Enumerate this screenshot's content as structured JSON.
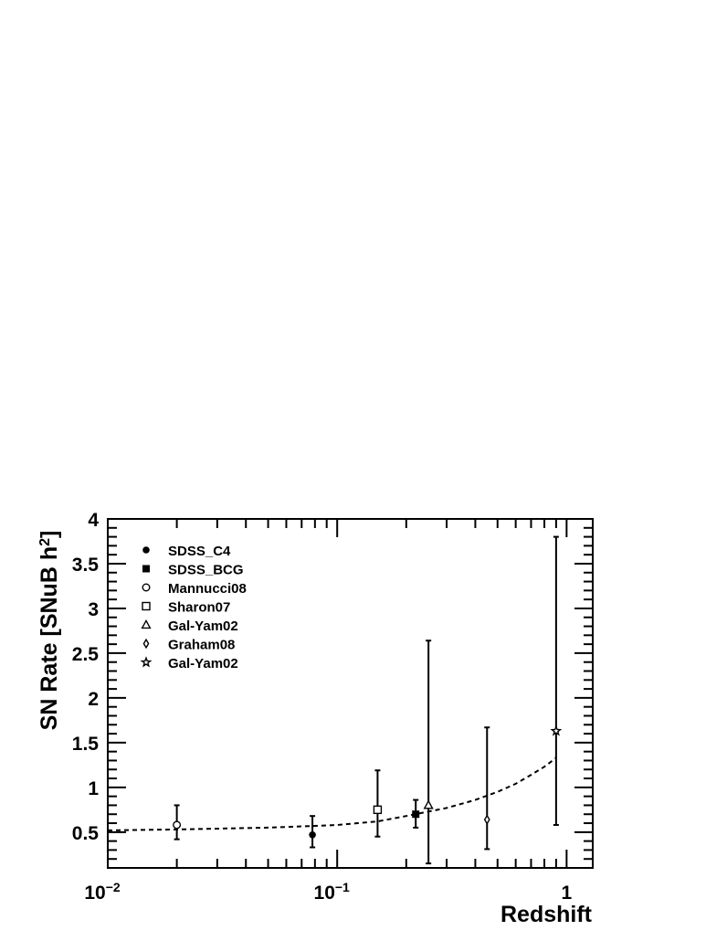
{
  "chart_data": {
    "type": "scatter",
    "xlabel": "Redshift",
    "ylabel": "SN Rate [SNuB h",
    "ylabel_sup": "2",
    "ylabel_end": "]",
    "x_scale": "log",
    "xlim": [
      0.01,
      1.3
    ],
    "ylim": [
      0.1,
      4.0
    ],
    "x_ticks": [
      {
        "value": 0.01,
        "base": "10",
        "exp": "−2"
      },
      {
        "value": 0.1,
        "base": "10",
        "exp": "−1"
      },
      {
        "value": 1,
        "base": "1",
        "exp": ""
      }
    ],
    "y_ticks": [
      {
        "value": 0.5,
        "label": "0.5"
      },
      {
        "value": 1,
        "label": "1"
      },
      {
        "value": 1.5,
        "label": "1.5"
      },
      {
        "value": 2,
        "label": "2"
      },
      {
        "value": 2.5,
        "label": "2.5"
      },
      {
        "value": 3,
        "label": "3"
      },
      {
        "value": 3.5,
        "label": "3.5"
      },
      {
        "value": 4,
        "label": "4"
      }
    ],
    "grid": false,
    "legend_position": "top-left",
    "series": [
      {
        "name": "SDSS_C4",
        "marker": "filled-circle",
        "x": 0.078,
        "y": 0.47,
        "y_low": 0.33,
        "y_high": 0.68
      },
      {
        "name": "SDSS_BCG",
        "marker": "filled-square",
        "x": 0.22,
        "y": 0.7,
        "y_low": 0.55,
        "y_high": 0.86
      },
      {
        "name": "Mannucci08",
        "marker": "open-circle",
        "x": 0.02,
        "y": 0.58,
        "y_low": 0.42,
        "y_high": 0.8
      },
      {
        "name": "Sharon07",
        "marker": "open-square",
        "x": 0.15,
        "y": 0.75,
        "y_low": 0.45,
        "y_high": 1.19
      },
      {
        "name": "Gal-Yam02",
        "marker": "open-triangle",
        "x": 0.25,
        "y": 0.8,
        "y_low": 0.15,
        "y_high": 2.64
      },
      {
        "name": "Graham08",
        "marker": "open-diamond",
        "x": 0.45,
        "y": 0.64,
        "y_low": 0.31,
        "y_high": 1.67
      },
      {
        "name": "Gal-Yam02",
        "marker": "open-star",
        "x": 0.9,
        "y": 1.63,
        "y_low": 0.58,
        "y_high": 3.8
      }
    ],
    "fit_curve": {
      "style": "dashed",
      "x": [
        0.01,
        0.02,
        0.05,
        0.08,
        0.1,
        0.15,
        0.2,
        0.25,
        0.3,
        0.4,
        0.5,
        0.6,
        0.7,
        0.8,
        0.9
      ],
      "y": [
        0.52,
        0.53,
        0.55,
        0.57,
        0.58,
        0.62,
        0.68,
        0.73,
        0.77,
        0.86,
        0.95,
        1.04,
        1.14,
        1.23,
        1.33
      ]
    }
  }
}
